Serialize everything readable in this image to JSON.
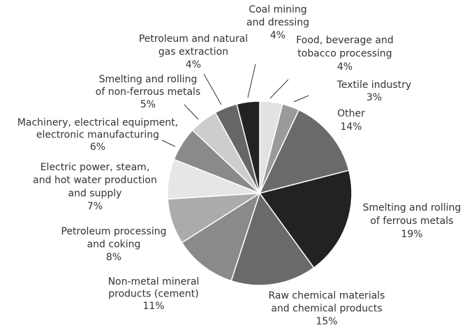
{
  "chart_data": {
    "type": "pie",
    "categories": [
      "Food, beverage and\ntobacco processing",
      "Textile industry",
      "Other",
      "Smelting and rolling\nof ferrous metals",
      "Raw chemical materials\nand chemical products",
      "Non-metal mineral\nproducts (cement)",
      "Petroleum processing\nand coking",
      "Electric power, steam,\nand hot water production\nand supply",
      "Machinery, electrical equipment,\nelectronic manufacturing",
      "Smelting and rolling\nof non-ferrous metals",
      "Petroleum and natural\ngas extraction",
      "Coal mining\nand dressing"
    ],
    "values": [
      4,
      3,
      14,
      19,
      15,
      11,
      8,
      7,
      6,
      5,
      4,
      4
    ],
    "value_labels": [
      "4%",
      "3%",
      "14%",
      "19%",
      "15%",
      "11%",
      "8%",
      "7%",
      "6%",
      "5%",
      "4%",
      "4%"
    ],
    "colors": [
      "#e2e2e2",
      "#9a9a9a",
      "#6a6a6a",
      "#222222",
      "#6a6a6a",
      "#8a8a8a",
      "#ababab",
      "#e6e6e6",
      "#8a8a8a",
      "#cdcdcd",
      "#666666",
      "#222222"
    ]
  }
}
